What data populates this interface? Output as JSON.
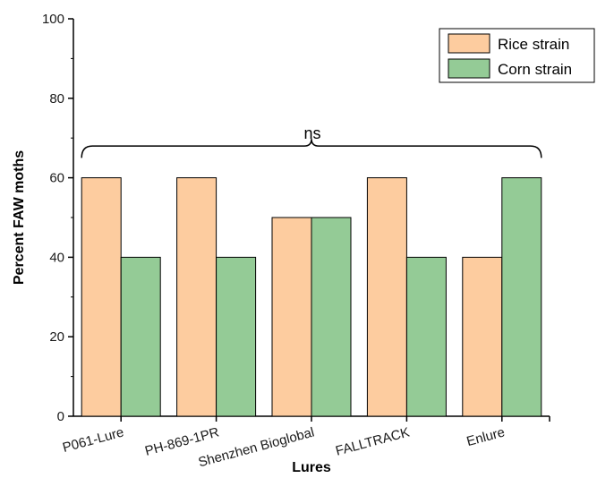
{
  "chart_data": {
    "type": "bar",
    "categories": [
      "P061-Lure",
      "PH-869-1PR",
      "Shenzhen Bioglobal",
      "FALLTRACK",
      "Enlure"
    ],
    "series": [
      {
        "name": "Rice strain",
        "values": [
          60,
          60,
          50,
          60,
          40
        ],
        "color": "#fdcc9f"
      },
      {
        "name": "Corn strain",
        "values": [
          40,
          40,
          50,
          40,
          60
        ],
        "color": "#94cb96"
      }
    ],
    "xlabel": "Lures",
    "ylabel": "Percent FAW moths",
    "ylim": [
      0,
      100
    ],
    "yticks": [
      0,
      20,
      40,
      60,
      80,
      100
    ],
    "grid": false,
    "legend_position": "top-right",
    "annotation": "ns"
  }
}
